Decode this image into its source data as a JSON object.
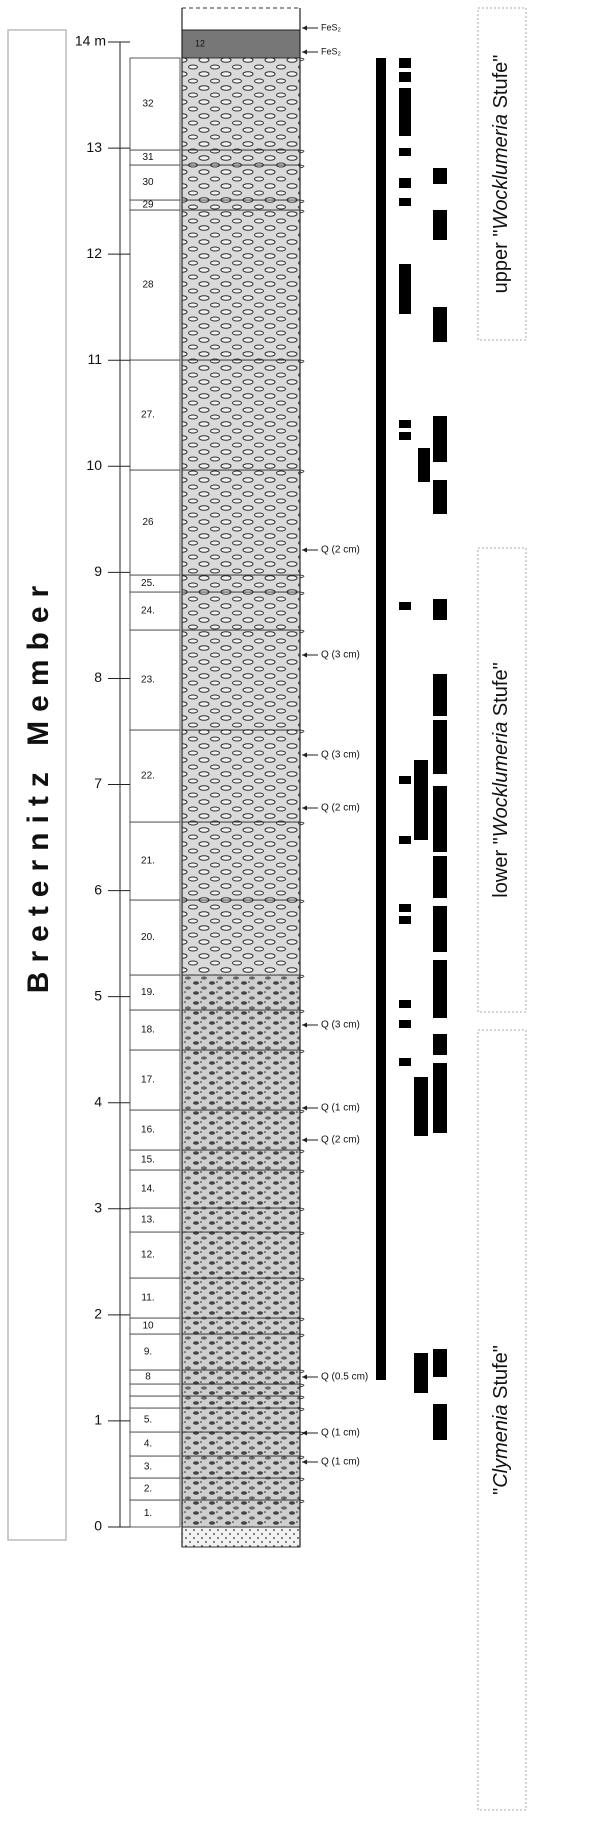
{
  "member": "Breternitz Member",
  "depth_ticks": [
    "0",
    "1",
    "2",
    "3",
    "4",
    "5",
    "6",
    "7",
    "8",
    "9",
    "10",
    "11",
    "12",
    "13",
    "14 m"
  ],
  "beds": [
    "1.",
    "2.",
    "3.",
    "4.",
    "5.",
    null,
    null,
    "8",
    "9.",
    "10",
    "11.",
    "12.",
    "13.",
    "14.",
    "15.",
    "16.",
    "17.",
    "18.",
    "19.",
    "20.",
    "21.",
    "22.",
    "23.",
    "24.",
    "25.",
    "26",
    "27.",
    "28",
    "29",
    "30",
    "31",
    "32"
  ],
  "top_bed": "12",
  "annotations": [
    "FeS₂",
    "FeS₂",
    "Q (2 cm)",
    "Q (3 cm)",
    "Q (3 cm)",
    "Q (2 cm)",
    "Q (3 cm)",
    "Q (1 cm)",
    "Q (2 cm)",
    "Q (0.5 cm)",
    "Q (1 cm)",
    "Q (1 cm)"
  ],
  "stages": [
    {
      "prefix": "upper \"",
      "italic": "Wocklumeria",
      "suffix": " Stufe\""
    },
    {
      "prefix": "lower \"",
      "italic": "Wocklumeria",
      "suffix": " Stufe\""
    },
    {
      "prefix": "\"",
      "italic": "Clymenia",
      "suffix": " Stufe\""
    }
  ]
}
